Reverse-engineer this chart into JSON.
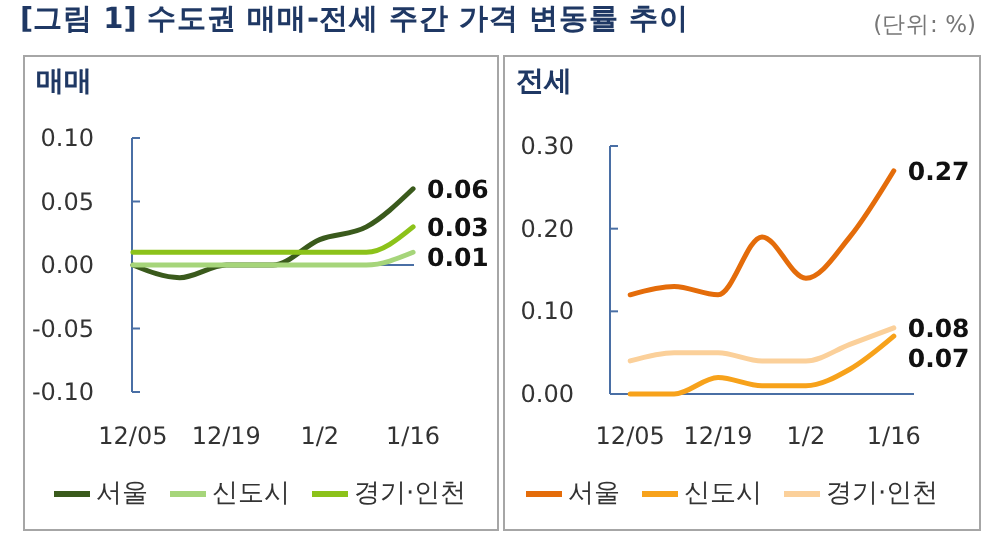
{
  "chart_data": [
    {
      "type": "line",
      "title": "매매",
      "annotations": [
        "[그림 1] 수도권 매매-전세 주간 가격 변동률 추이",
        "(단위: %)"
      ],
      "categories": [
        "12/05",
        null,
        "12/19",
        null,
        "1/2",
        null,
        "1/16"
      ],
      "ylim": [
        -0.1,
        0.1
      ],
      "ref_lines": [
        {
          "axis": "y",
          "value": 0,
          "color": "#4a6fa5"
        }
      ],
      "yticks": [
        {
          "value": 0.1,
          "label": "0.10"
        },
        {
          "value": 0.05,
          "label": "0.05"
        },
        {
          "value": 0,
          "label": "0.00"
        },
        {
          "value": -0.05,
          "label": "-0.05"
        },
        {
          "value": -0.1,
          "label": "-0.10"
        }
      ],
      "legend": "bottom",
      "series": [
        {
          "name": "서울",
          "color": "#3a5a1c",
          "values": [
            0,
            -0.01,
            0,
            0,
            0.02,
            0.03,
            0.06
          ],
          "value_labels": [
            null,
            null,
            null,
            null,
            null,
            null,
            "0.06"
          ]
        },
        {
          "name": "신도시",
          "color": "#a6d57a",
          "values": [
            0,
            0,
            0,
            0,
            0,
            0,
            0.01
          ],
          "value_labels": [
            null,
            null,
            null,
            null,
            null,
            null,
            "0.01"
          ]
        },
        {
          "name": "경기·인천",
          "color": "#8cc21a",
          "values": [
            0.01,
            0.01,
            0.01,
            0.01,
            0.01,
            0.01,
            0.03
          ],
          "value_labels": [
            null,
            null,
            null,
            null,
            null,
            null,
            "0.03"
          ]
        }
      ]
    },
    {
      "type": "line",
      "title": "전세",
      "categories": [
        "12/05",
        null,
        "12/19",
        null,
        "1/2",
        null,
        "1/16"
      ],
      "ylim": [
        0,
        0.3
      ],
      "yticks": [
        {
          "value": 0,
          "label": "0.00"
        },
        {
          "value": 0.1,
          "label": "0.10"
        },
        {
          "value": 0.2,
          "label": "0.20"
        },
        {
          "value": 0.3,
          "label": "0.30"
        }
      ],
      "legend": "bottom",
      "series": [
        {
          "name": "서울",
          "color": "#e46c0a",
          "values": [
            0.12,
            0.13,
            0.12,
            0.19,
            0.14,
            0.19,
            0.27
          ],
          "value_labels": [
            null,
            null,
            null,
            null,
            null,
            null,
            "0.27"
          ]
        },
        {
          "name": "신도시",
          "color": "#f7a21b",
          "values": [
            0,
            0,
            0.02,
            0.01,
            0.01,
            0.03,
            0.07
          ],
          "value_labels": [
            null,
            null,
            null,
            null,
            null,
            null,
            "0.07"
          ]
        },
        {
          "name": "경기·인천",
          "color": "#fbd09a",
          "values": [
            0.04,
            0.05,
            0.05,
            0.04,
            0.04,
            0.06,
            0.08
          ],
          "value_labels": [
            null,
            null,
            null,
            null,
            null,
            null,
            "0.08"
          ]
        }
      ]
    }
  ]
}
